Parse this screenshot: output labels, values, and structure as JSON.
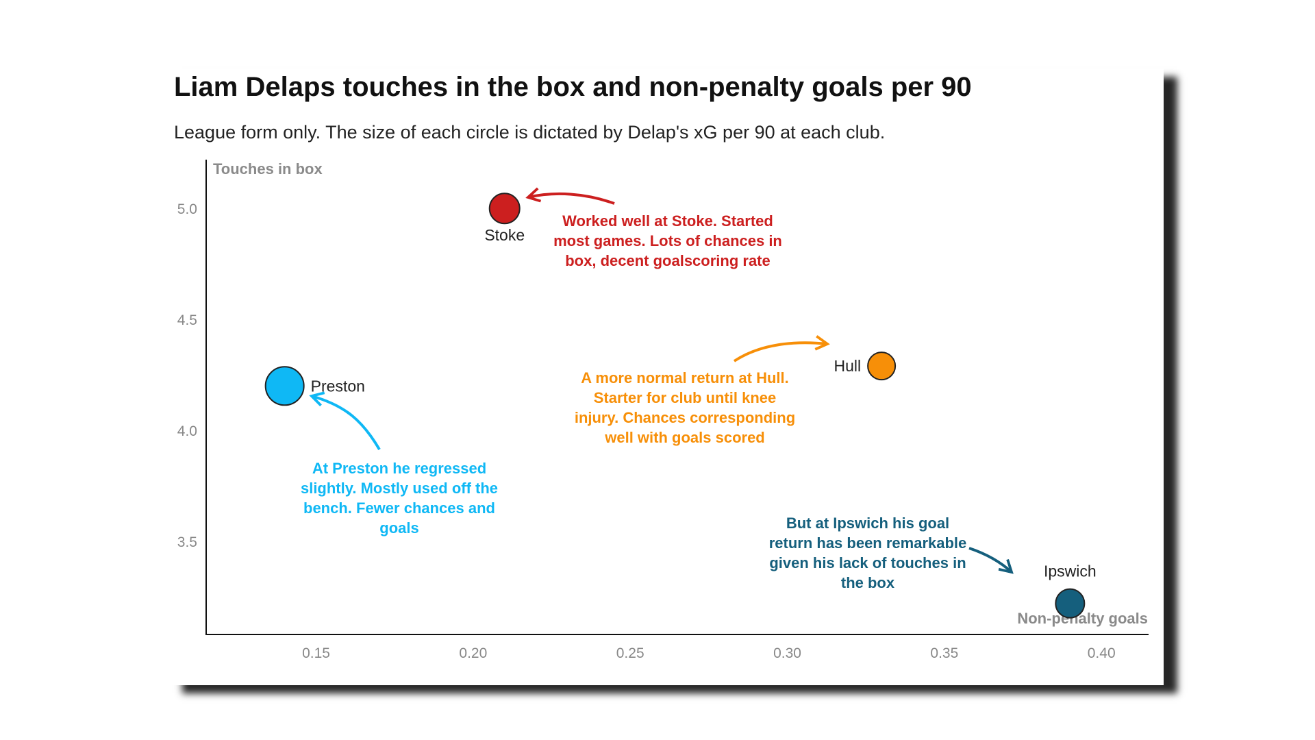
{
  "header": {
    "title": "Liam Delaps touches in the box and non-penalty goals per 90",
    "subtitle": "League form only. The size of each circle is dictated by Delap's xG per 90 at each club."
  },
  "chart_data": {
    "type": "scatter",
    "xlabel": "Non-penalty goals",
    "ylabel": "Touches in box",
    "xlim": [
      0.115,
      0.415
    ],
    "ylim": [
      3.08,
      5.22
    ],
    "x_ticks": [
      "0.15",
      "0.20",
      "0.25",
      "0.30",
      "0.35",
      "0.40"
    ],
    "y_ticks": [
      "3.5",
      "4.0",
      "4.5",
      "5.0"
    ],
    "grid": false,
    "points": [
      {
        "label": "Stoke",
        "x": 0.21,
        "y": 5.0,
        "color": "#cc1f1f",
        "label_pos": "below"
      },
      {
        "label": "Preston",
        "x": 0.14,
        "y": 4.2,
        "color": "#0fb8f5",
        "label_pos": "right"
      },
      {
        "label": "Hull",
        "x": 0.33,
        "y": 4.29,
        "color": "#f78f08",
        "label_pos": "left"
      },
      {
        "label": "Ipswich",
        "x": 0.39,
        "y": 3.22,
        "color": "#155f7d",
        "label_pos": "above"
      }
    ],
    "annotations": [
      {
        "club": "Stoke",
        "color": "#cc1f1f",
        "lines": [
          "Worked well at Stoke. Started",
          "most games. Lots of chances in",
          "box, decent goalscoring rate"
        ]
      },
      {
        "club": "Preston",
        "color": "#0fb8f5",
        "lines": [
          "At Preston he regressed",
          "slightly. Mostly used off the",
          "bench. Fewer chances and",
          "goals"
        ]
      },
      {
        "club": "Hull",
        "color": "#f78f08",
        "lines": [
          "A more normal return at Hull.",
          "Starter for club until knee",
          "injury. Chances corresponding",
          "well with goals scored"
        ]
      },
      {
        "club": "Ipswich",
        "color": "#155f7d",
        "lines": [
          "But at Ipswich his goal",
          "return has been remarkable",
          "given his lack of touches in",
          "the box"
        ]
      }
    ]
  }
}
